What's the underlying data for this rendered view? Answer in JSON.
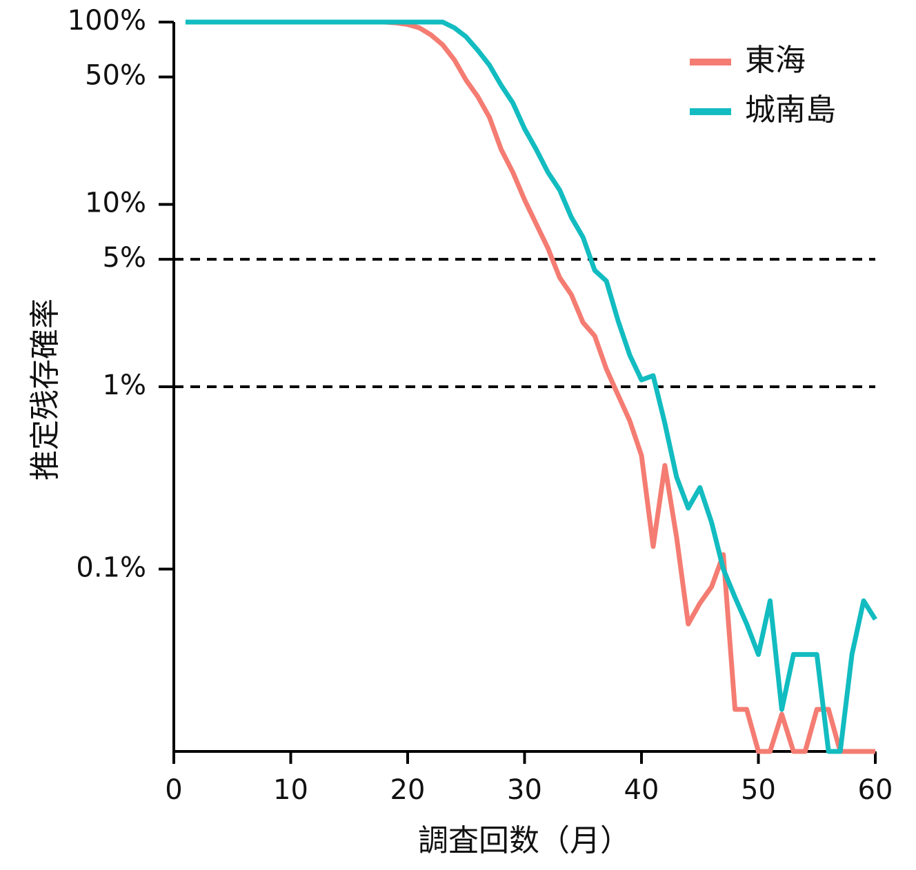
{
  "chart_data": {
    "type": "line",
    "xlabel": "調査回数（月）",
    "ylabel": "推定残存確率",
    "log_y": true,
    "legend": "top-right",
    "x": [
      1,
      2,
      3,
      4,
      5,
      6,
      7,
      8,
      9,
      10,
      11,
      12,
      13,
      14,
      15,
      16,
      17,
      18,
      19,
      20,
      21,
      22,
      23,
      24,
      25,
      26,
      27,
      28,
      29,
      30,
      31,
      32,
      33,
      34,
      35,
      36,
      37,
      38,
      39,
      40,
      41,
      42,
      43,
      44,
      45,
      46,
      47,
      48,
      49,
      50,
      51,
      52,
      53,
      54,
      55,
      56,
      57,
      58,
      59,
      60
    ],
    "series": [
      {
        "name": "東海",
        "color": "#f47c72",
        "values": [
          100,
          100,
          100,
          100,
          100,
          100,
          100,
          100,
          100,
          100,
          100,
          100,
          100,
          100,
          100,
          100,
          100,
          100,
          99,
          97,
          93,
          85,
          75,
          62,
          48,
          39,
          30,
          20,
          15,
          10.6,
          7.8,
          5.75,
          3.97,
          3.2,
          2.25,
          1.9,
          1.25,
          0.9,
          0.65,
          0.42,
          0.133,
          0.37,
          0.15,
          0.05,
          0.065,
          0.08,
          0.12,
          0.017,
          0.017,
          0.01,
          0.01,
          0.016,
          0.01,
          0.01,
          0.017,
          0.017,
          0.01,
          0.01,
          0.01,
          0.01
        ]
      },
      {
        "name": "城南島",
        "color": "#12bcc0",
        "values": [
          100,
          100,
          100,
          100,
          100,
          100,
          100,
          100,
          100,
          100,
          100,
          100,
          100,
          100,
          100,
          100,
          100,
          100,
          100,
          100,
          100,
          100,
          100,
          93,
          83,
          70,
          58,
          45,
          36,
          26,
          20,
          15,
          12,
          8.5,
          6.6,
          4.35,
          3.8,
          2.3,
          1.49,
          1.09,
          1.15,
          0.63,
          0.32,
          0.216,
          0.28,
          0.18,
          0.1,
          0.07,
          0.05,
          0.034,
          0.067,
          0.017,
          0.034,
          0.034,
          0.034,
          0.01,
          0.01,
          0.034,
          0.067,
          0.053
        ]
      }
    ],
    "xlim": [
      0,
      60
    ],
    "xticks": [
      0,
      10,
      20,
      30,
      40,
      50,
      60
    ],
    "ylim": [
      0.01,
      100
    ],
    "yticks": [
      {
        "value": 100,
        "label": "100%"
      },
      {
        "value": 50,
        "label": "50%"
      },
      {
        "value": 10,
        "label": "10%"
      },
      {
        "value": 5,
        "label": "5%"
      },
      {
        "value": 1,
        "label": "1%"
      },
      {
        "value": 0.1,
        "label": "0.1%"
      }
    ],
    "hlines": [
      5,
      1
    ]
  }
}
